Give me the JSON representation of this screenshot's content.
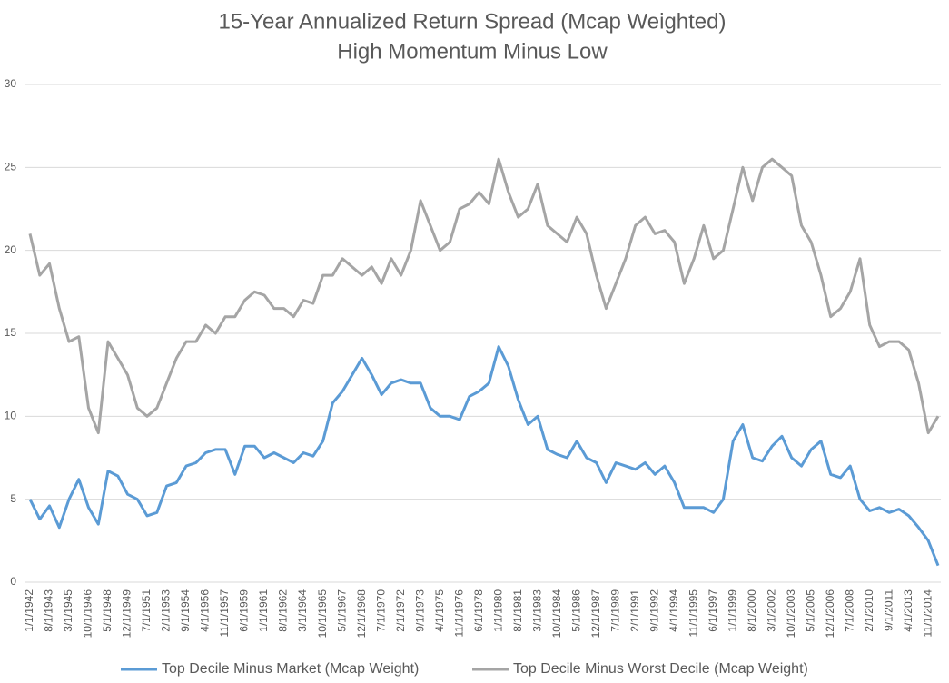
{
  "chart_data": {
    "type": "line",
    "title": "15-Year Annualized Return Spread (Mcap Weighted)",
    "subtitle": "High Momentum Minus Low",
    "categories": [
      "1/1/1942",
      null,
      "8/1/1943",
      null,
      "3/1/1945",
      null,
      "10/1/1946",
      null,
      "5/1/1948",
      null,
      "12/1/1949",
      null,
      "7/1/1951",
      null,
      "2/1/1953",
      null,
      "9/1/1954",
      null,
      "4/1/1956",
      null,
      "11/1/1957",
      null,
      "6/1/1959",
      null,
      "1/1/1961",
      null,
      "8/1/1962",
      null,
      "3/1/1964",
      null,
      "10/1/1965",
      null,
      "5/1/1967",
      null,
      "12/1/1968",
      null,
      "7/1/1970",
      null,
      "2/1/1972",
      null,
      "9/1/1973",
      null,
      "4/1/1975",
      null,
      "11/1/1976",
      null,
      "6/1/1978",
      null,
      "1/1/1980",
      null,
      "8/1/1981",
      null,
      "3/1/1983",
      null,
      "10/1/1984",
      null,
      "5/1/1986",
      null,
      "12/1/1987",
      null,
      "7/1/1989",
      null,
      "2/1/1991",
      null,
      "9/1/1992",
      null,
      "4/1/1994",
      null,
      "11/1/1995",
      null,
      "6/1/1997",
      null,
      "1/1/1999",
      null,
      "8/1/2000",
      null,
      "3/1/2002",
      null,
      "10/1/2003",
      null,
      "5/1/2005",
      null,
      "12/1/2006",
      null,
      "7/1/2008",
      null,
      "2/1/2010",
      null,
      "9/1/2011",
      null,
      "4/1/2013",
      null,
      "11/1/2014",
      null
    ],
    "series": [
      {
        "name": "Top Decile Minus Market (Mcap Weight)",
        "color": "#5b9bd5",
        "values": [
          5.0,
          3.8,
          4.6,
          3.3,
          5.0,
          6.2,
          4.5,
          3.5,
          6.7,
          6.4,
          5.3,
          5.0,
          4.0,
          4.2,
          5.8,
          6.0,
          7.0,
          7.2,
          7.8,
          8.0,
          8.0,
          6.5,
          8.2,
          8.2,
          7.5,
          7.8,
          7.5,
          7.2,
          7.8,
          7.6,
          8.5,
          10.8,
          11.5,
          12.5,
          13.5,
          12.5,
          11.3,
          12.0,
          12.2,
          12.0,
          12.0,
          10.5,
          10.0,
          10.0,
          9.8,
          11.2,
          11.5,
          12.0,
          14.2,
          13.0,
          11.0,
          9.5,
          10.0,
          8.0,
          7.7,
          7.5,
          8.5,
          7.5,
          7.2,
          6.0,
          7.2,
          7.0,
          6.8,
          7.2,
          6.5,
          7.0,
          6.0,
          4.5,
          4.5,
          4.5,
          4.2,
          5.0,
          8.5,
          9.5,
          7.5,
          7.3,
          8.2,
          8.8,
          7.5,
          7.0,
          8.0,
          8.5,
          6.5,
          6.3,
          7.0,
          5.0,
          4.3,
          4.5,
          4.2,
          4.4,
          4.0,
          3.3,
          2.5,
          1.0
        ]
      },
      {
        "name": "Top Decile Minus Worst Decile (Mcap Weight)",
        "color": "#a5a5a5",
        "values": [
          21.0,
          18.5,
          19.2,
          16.5,
          14.5,
          14.8,
          10.5,
          9.0,
          14.5,
          13.5,
          12.5,
          10.5,
          10.0,
          10.5,
          12.0,
          13.5,
          14.5,
          14.5,
          15.5,
          15.0,
          16.0,
          16.0,
          17.0,
          17.5,
          17.3,
          16.5,
          16.5,
          16.0,
          17.0,
          16.8,
          18.5,
          18.5,
          19.5,
          19.0,
          18.5,
          19.0,
          18.0,
          19.5,
          18.5,
          20.0,
          23.0,
          21.5,
          20.0,
          20.5,
          22.5,
          22.8,
          23.5,
          22.8,
          25.5,
          23.5,
          22.0,
          22.5,
          24.0,
          21.5,
          21.0,
          20.5,
          22.0,
          21.0,
          18.5,
          16.5,
          18.0,
          19.5,
          21.5,
          22.0,
          21.0,
          21.2,
          20.5,
          18.0,
          19.5,
          21.5,
          19.5,
          20.0,
          22.5,
          25.0,
          23.0,
          25.0,
          25.5,
          25.0,
          24.5,
          21.5,
          20.5,
          18.5,
          16.0,
          16.5,
          17.5,
          19.5,
          15.5,
          14.2,
          14.5,
          14.5,
          14.0,
          12.0,
          9.0,
          10.0
        ]
      }
    ],
    "ylim": [
      0,
      30
    ],
    "yticks": [
      0,
      5,
      10,
      15,
      20,
      25,
      30
    ],
    "grid": true,
    "legend": "bottom"
  }
}
